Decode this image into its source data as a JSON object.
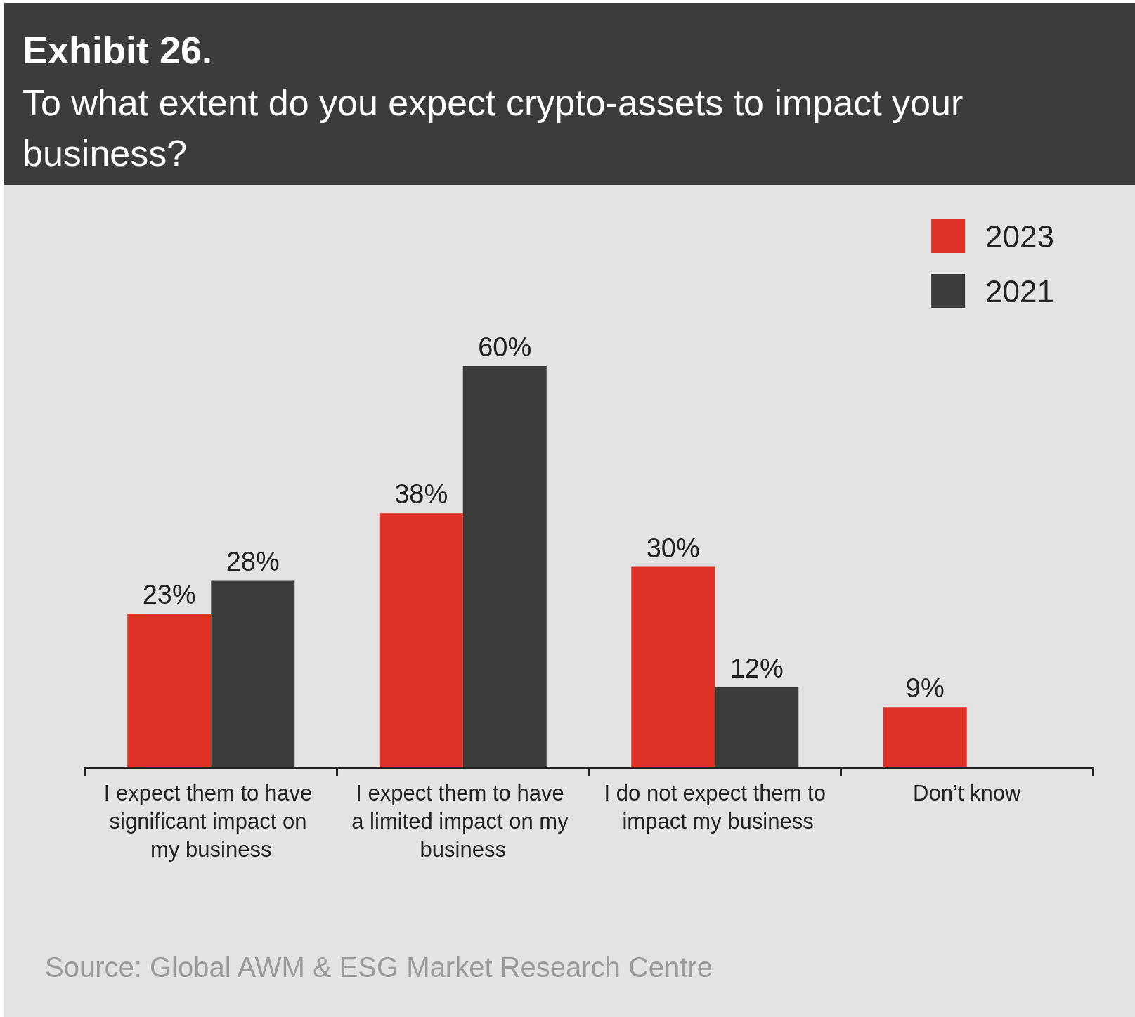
{
  "chart_data": {
    "type": "bar",
    "title": "Exhibit 26.",
    "subtitle": "To what extent do you expect crypto-assets to impact your business?",
    "categories": [
      "I expect them to have significant impact on my business",
      "I expect them to have a limited impact on my business",
      "I do not expect them to impact my business",
      "Don’t know"
    ],
    "series": [
      {
        "name": "2023",
        "color": "#e03127",
        "values": [
          23,
          38,
          30,
          9
        ],
        "value_labels": [
          "23%",
          "38%",
          "30%",
          "9%"
        ]
      },
      {
        "name": "2021",
        "color": "#3c3c3b",
        "values": [
          28,
          60,
          12,
          null
        ],
        "value_labels": [
          "28%",
          "60%",
          "12%",
          null
        ]
      }
    ],
    "legend": "top right",
    "grid": false,
    "annotations": [
      "Source: Global AWM & ESG Market Research Centre"
    ]
  }
}
